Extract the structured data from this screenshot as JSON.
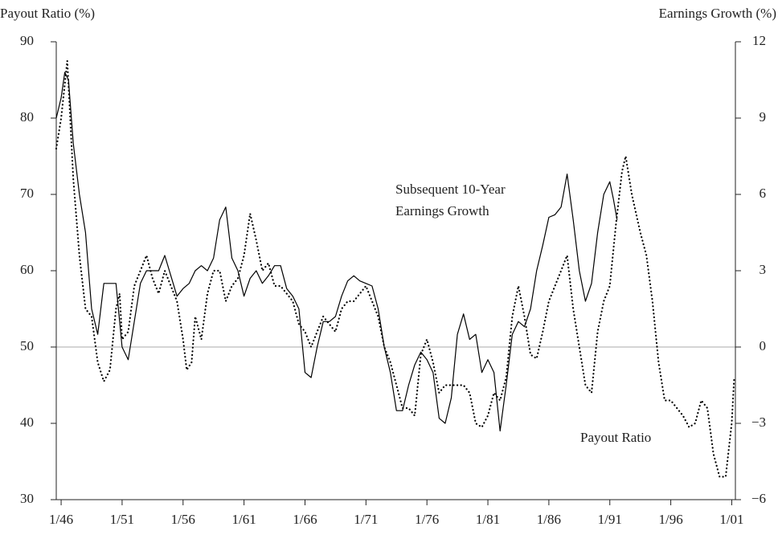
{
  "chart_data": {
    "type": "line",
    "y_label": "Payout Ratio (%)",
    "y2_label": "Earnings Growth (%)",
    "annotations": [
      [
        "Subsequent 10-Year",
        "Earnings Growth"
      ],
      [
        "Payout Ratio"
      ]
    ],
    "xlim": [
      1945.6,
      2001.3
    ],
    "xticks": [
      {
        "value": 1946,
        "label": "1/46"
      },
      {
        "value": 1951,
        "label": "1/51"
      },
      {
        "value": 1956,
        "label": "1/56"
      },
      {
        "value": 1961,
        "label": "1/61"
      },
      {
        "value": 1966,
        "label": "1/66"
      },
      {
        "value": 1971,
        "label": "1/71"
      },
      {
        "value": 1976,
        "label": "1/76"
      },
      {
        "value": 1981,
        "label": "1/81"
      },
      {
        "value": 1986,
        "label": "1/86"
      },
      {
        "value": 1991,
        "label": "1/91"
      },
      {
        "value": 1996,
        "label": "1/96"
      },
      {
        "value": 2001,
        "label": "1/01"
      }
    ],
    "ylim": [
      30,
      90
    ],
    "yticks": [
      30,
      40,
      50,
      60,
      70,
      80,
      90
    ],
    "y2lim": [
      -6,
      12
    ],
    "y2ticks": [
      {
        "value": -6,
        "label": "−6"
      },
      {
        "value": -3,
        "label": "−3"
      },
      0,
      3,
      6,
      9,
      12
    ],
    "series": [
      {
        "name": "Payout Ratio",
        "color": "#000000",
        "style": "dotted",
        "x": [
          1945.6,
          1946,
          1946.5,
          1947,
          1947.5,
          1948,
          1948.5,
          1949,
          1949.5,
          1950,
          1950.5,
          1950.8,
          1951,
          1951.5,
          1952,
          1952.5,
          1953,
          1953.5,
          1954,
          1954.5,
          1955,
          1955.5,
          1956,
          1956.3,
          1956.7,
          1957,
          1957.5,
          1958,
          1958.5,
          1959,
          1959.5,
          1960,
          1960.5,
          1961,
          1961.5,
          1962,
          1962.5,
          1963,
          1963.5,
          1964,
          1964.5,
          1965,
          1965.5,
          1966,
          1966.5,
          1967,
          1967.5,
          1968,
          1968.5,
          1969,
          1969.5,
          1970,
          1970.5,
          1971,
          1971.5,
          1972,
          1972.5,
          1973,
          1973.5,
          1974,
          1974.5,
          1975,
          1975.5,
          1976,
          1976.5,
          1977,
          1977.5,
          1978,
          1978.5,
          1979,
          1979.5,
          1980,
          1980.5,
          1981,
          1981.5,
          1982,
          1982.5,
          1983,
          1983.5,
          1984,
          1984.5,
          1985,
          1985.5,
          1986,
          1986.5,
          1987,
          1987.5,
          1988,
          1988.5,
          1989,
          1989.5,
          1990,
          1990.5,
          1991,
          1991.5,
          1992,
          1992.3,
          1992.8,
          1993.5,
          1994,
          1994.5,
          1995,
          1995.5,
          1996,
          1996.5,
          1997,
          1997.5,
          1998,
          1998.5,
          1999,
          1999.5,
          2000,
          2000.5,
          2001,
          2001.2
        ],
        "values": [
          76,
          80,
          87.5,
          72,
          62,
          55,
          54,
          48,
          45.5,
          47,
          55,
          57,
          51,
          52,
          58,
          60,
          62,
          59,
          57,
          60,
          58,
          56,
          51,
          47,
          48,
          54,
          51,
          57,
          60,
          60,
          56,
          58,
          59,
          62,
          67.5,
          64,
          60,
          61,
          58,
          58,
          57,
          56,
          53,
          52,
          50,
          52,
          54,
          53,
          52,
          55,
          56,
          56,
          57,
          58,
          56,
          54,
          50,
          48,
          45,
          42,
          42,
          41,
          49,
          51,
          48,
          44,
          45,
          45,
          45,
          45,
          44,
          40,
          39.5,
          41,
          44,
          43,
          46,
          54,
          58,
          54,
          49,
          48.5,
          52,
          56,
          58,
          60,
          62,
          55,
          50,
          45,
          44,
          52,
          56,
          58,
          66,
          73,
          75,
          70,
          65,
          62,
          56,
          48,
          43,
          43,
          42,
          41,
          39.5,
          40,
          43,
          42,
          36,
          33,
          33,
          40,
          46
        ]
      },
      {
        "name": "Subsequent 10-Year Earnings Growth",
        "color": "#000000",
        "style": "solid",
        "axis": "y2",
        "x": [
          1945.6,
          1946,
          1946.3,
          1946.6,
          1947,
          1947.5,
          1948,
          1948.5,
          1949,
          1949.5,
          1950,
          1950.5,
          1951,
          1951.5,
          1952,
          1952.5,
          1953,
          1954,
          1954.5,
          1955,
          1955.5,
          1956,
          1956.5,
          1957,
          1957.5,
          1958,
          1958.5,
          1959,
          1959.5,
          1960,
          1960.5,
          1961,
          1961.5,
          1962,
          1962.5,
          1963,
          1963.5,
          1964,
          1964.5,
          1965,
          1965.5,
          1966,
          1966.5,
          1967,
          1967.5,
          1968,
          1968.5,
          1969,
          1969.5,
          1970,
          1970.5,
          1971,
          1971.5,
          1972,
          1972.5,
          1973,
          1973.5,
          1974,
          1974.5,
          1975,
          1975.5,
          1976,
          1976.5,
          1977,
          1977.5,
          1978,
          1978.5,
          1979,
          1979.5,
          1980,
          1980.5,
          1981,
          1981.5,
          1982,
          1982.5,
          1983,
          1983.5,
          1984,
          1984.5,
          1985,
          1985.5,
          1986,
          1986.5,
          1987,
          1987.5,
          1988,
          1988.5,
          1989,
          1989.5,
          1990,
          1990.5,
          1991,
          1991.3,
          1991.6
        ],
        "values": [
          9,
          9.8,
          10.8,
          10.5,
          8,
          6,
          4.5,
          1.5,
          0.5,
          2.5,
          2.5,
          2.5,
          0,
          -0.5,
          1,
          2.5,
          3,
          3,
          3.6,
          2.8,
          2,
          2.3,
          2.5,
          3,
          3.2,
          3,
          3.5,
          5,
          5.5,
          3.5,
          3,
          2,
          2.7,
          3,
          2.5,
          2.8,
          3.2,
          3.2,
          2.3,
          2,
          1.5,
          -1,
          -1.2,
          0,
          1,
          1,
          1.2,
          2,
          2.6,
          2.8,
          2.6,
          2.5,
          2.4,
          1.5,
          0,
          -1,
          -2.5,
          -2.5,
          -1.5,
          -0.7,
          -0.2,
          -0.5,
          -1,
          -2.8,
          -3,
          -2,
          0.5,
          1.3,
          0.3,
          0.5,
          -1,
          -0.5,
          -1,
          -3.3,
          -1.5,
          0.5,
          1,
          0.8,
          1.5,
          3,
          4,
          5.1,
          5.2,
          5.5,
          6.8,
          5,
          3,
          1.8,
          2.5,
          4.5,
          6,
          6.5,
          5.8,
          5
        ]
      }
    ]
  }
}
